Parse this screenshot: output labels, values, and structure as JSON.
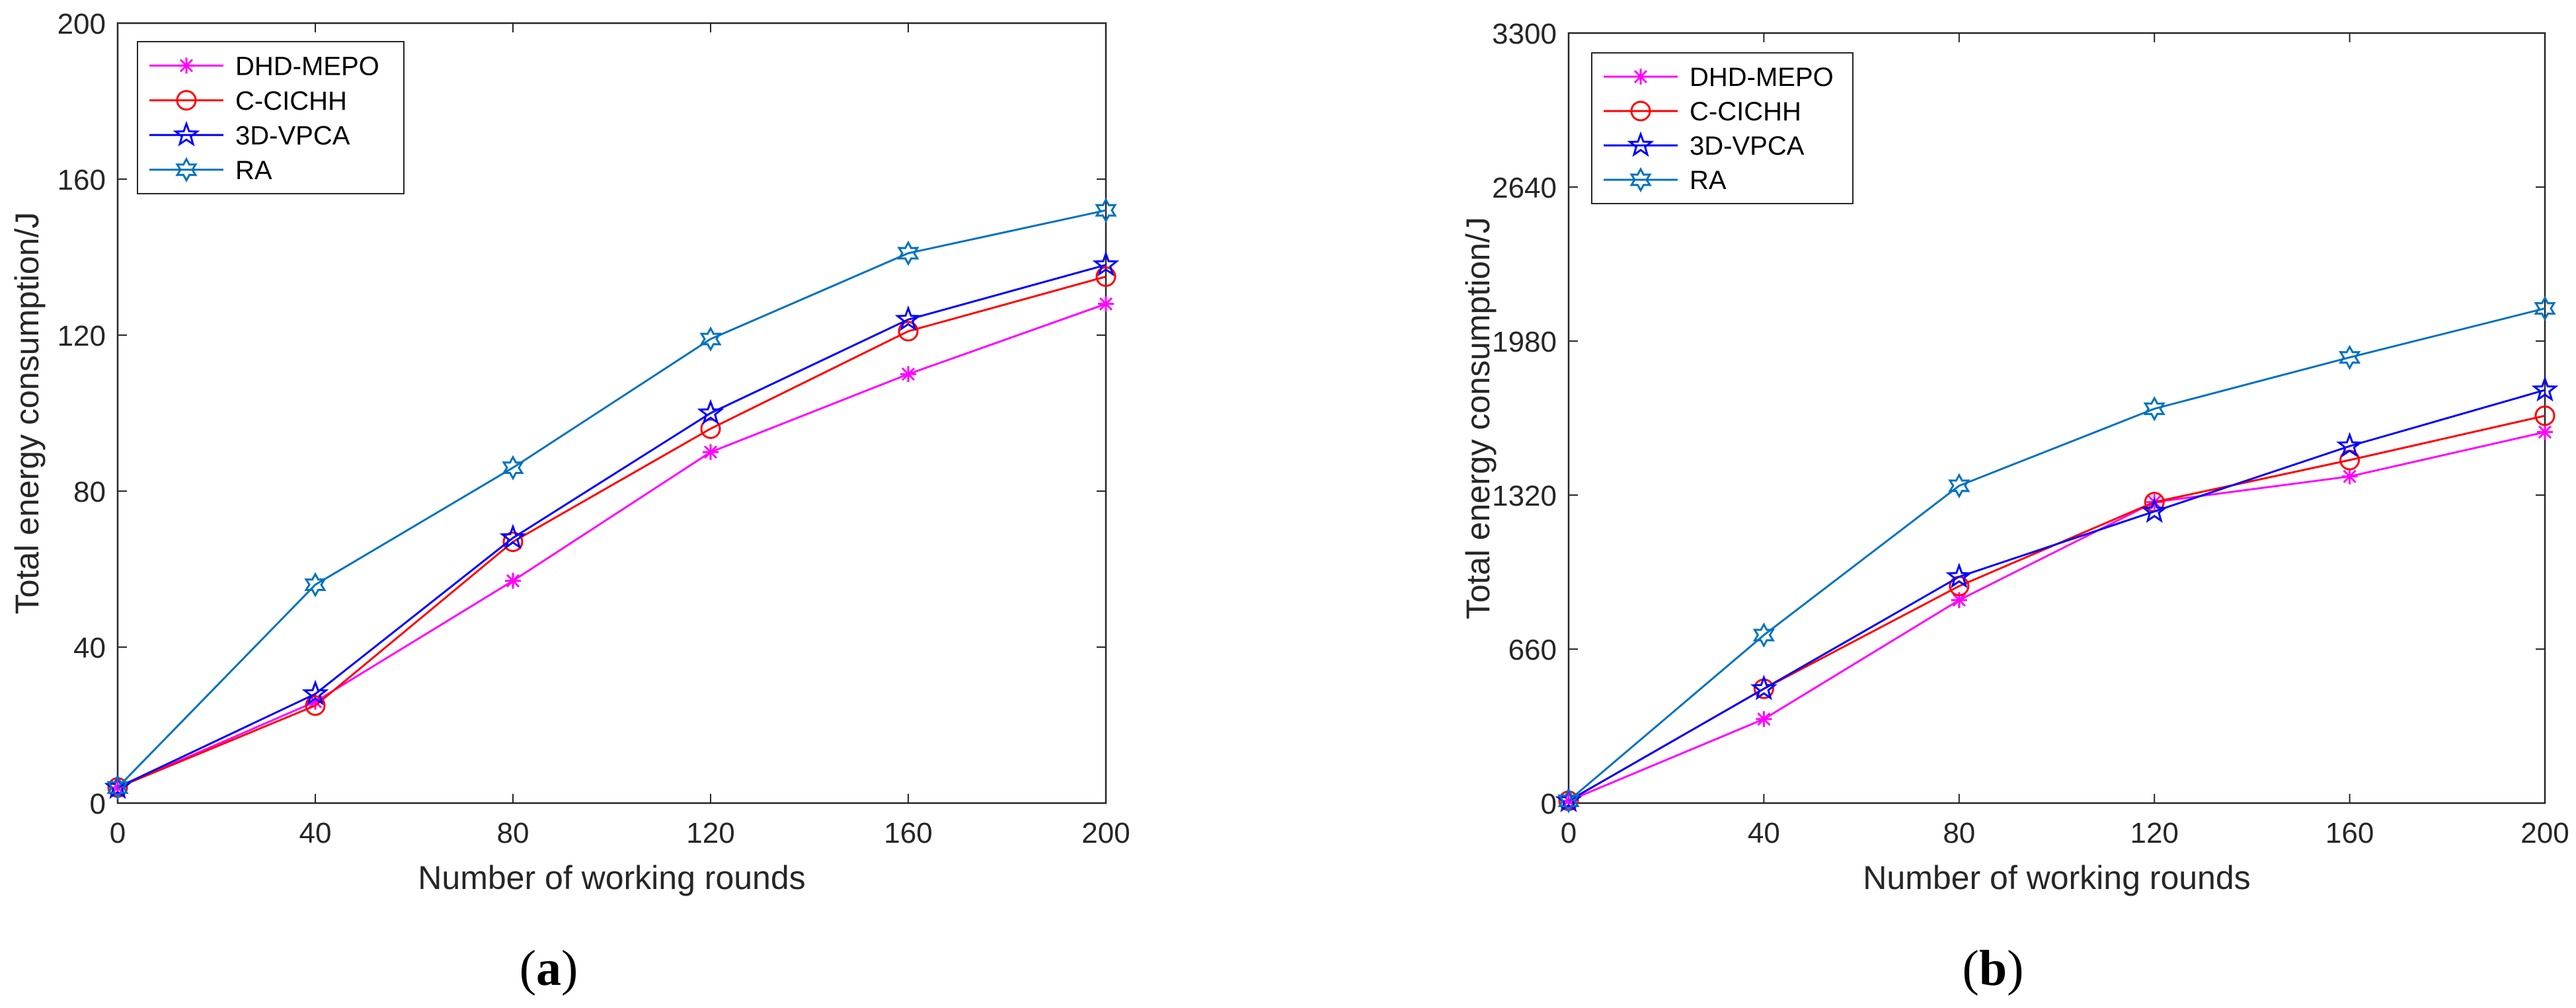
{
  "colors": {
    "DHD-MEPO": "#FF00FF",
    "C-CICHH": "#FF0000",
    "3D-VPCA": "#0000FF",
    "RA": "#0072BD",
    "axis": "#262626"
  },
  "chart_data": [
    {
      "type": "line",
      "panel": "(a)",
      "caption_letter": "a",
      "xlabel": "Number of working rounds",
      "ylabel": "Total energy consumption/J",
      "xlim": [
        0,
        200
      ],
      "ylim": [
        0,
        200
      ],
      "xticks": [
        0,
        40,
        80,
        120,
        160,
        200
      ],
      "yticks": [
        0,
        40,
        80,
        120,
        160,
        200
      ],
      "legend_position": "top-left",
      "x": [
        0,
        40,
        80,
        120,
        160,
        200
      ],
      "series": [
        {
          "name": "DHD-MEPO",
          "marker": "asterisk",
          "values": [
            4,
            26,
            57,
            90,
            110,
            128
          ]
        },
        {
          "name": "C-CICHH",
          "marker": "circle",
          "values": [
            4,
            25,
            67,
            96,
            121,
            135
          ]
        },
        {
          "name": "3D-VPCA",
          "marker": "star5",
          "values": [
            4,
            28,
            68,
            100,
            124,
            138
          ]
        },
        {
          "name": "RA",
          "marker": "star6",
          "values": [
            4,
            56,
            86,
            119,
            141,
            152
          ]
        }
      ]
    },
    {
      "type": "line",
      "panel": "(b)",
      "caption_letter": "b",
      "xlabel": "Number of working rounds",
      "ylabel": "Total energy consumption/J",
      "xlim": [
        0,
        200
      ],
      "ylim": [
        0,
        3300
      ],
      "xticks": [
        0,
        40,
        80,
        120,
        160,
        200
      ],
      "yticks": [
        0,
        660,
        1320,
        1980,
        2640,
        3300
      ],
      "legend_position": "top-left",
      "x": [
        0,
        40,
        80,
        120,
        160,
        200
      ],
      "series": [
        {
          "name": "DHD-MEPO",
          "marker": "asterisk",
          "values": [
            10,
            360,
            870,
            1290,
            1400,
            1590
          ]
        },
        {
          "name": "C-CICHH",
          "marker": "circle",
          "values": [
            10,
            490,
            930,
            1290,
            1470,
            1660
          ]
        },
        {
          "name": "3D-VPCA",
          "marker": "star5",
          "values": [
            10,
            490,
            970,
            1250,
            1530,
            1770
          ]
        },
        {
          "name": "RA",
          "marker": "star6",
          "values": [
            10,
            720,
            1360,
            1690,
            1910,
            2120
          ]
        }
      ]
    }
  ]
}
